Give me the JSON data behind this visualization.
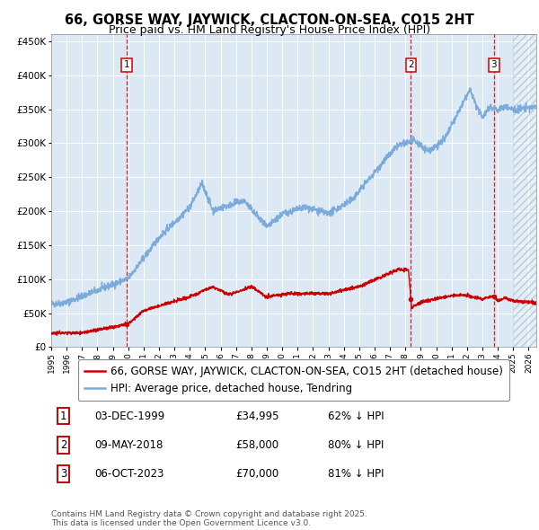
{
  "title": "66, GORSE WAY, JAYWICK, CLACTON-ON-SEA, CO15 2HT",
  "subtitle": "Price paid vs. HM Land Registry's House Price Index (HPI)",
  "hpi_label": "HPI: Average price, detached house, Tendring",
  "price_label": "66, GORSE WAY, JAYWICK, CLACTON-ON-SEA, CO15 2HT (detached house)",
  "ylabel_ticks": [
    "£0",
    "£50K",
    "£100K",
    "£150K",
    "£200K",
    "£250K",
    "£300K",
    "£350K",
    "£400K",
    "£450K"
  ],
  "ytick_vals": [
    0,
    50000,
    100000,
    150000,
    200000,
    250000,
    300000,
    350000,
    400000,
    450000
  ],
  "xlim_start": 1995.0,
  "xlim_end": 2026.5,
  "ylim": [
    0,
    460000
  ],
  "transactions": [
    {
      "num": 1,
      "date": "03-DEC-1999",
      "price": "34,995",
      "pct": "62%",
      "year": 1999.92
    },
    {
      "num": 2,
      "date": "09-MAY-2018",
      "price": "58,000",
      "pct": "80%",
      "year": 2018.36
    },
    {
      "num": 3,
      "date": "06-OCT-2023",
      "price": "70,000",
      "pct": "81%",
      "year": 2023.75
    }
  ],
  "hpi_color": "#7aabdb",
  "price_color": "#cc0000",
  "vline_color": "#cc0000",
  "bg_color": "#dce9f5",
  "grid_color": "#ffffff",
  "hatch_color": "#b0c8e0",
  "footer": "Contains HM Land Registry data © Crown copyright and database right 2025.\nThis data is licensed under the Open Government Licence v3.0.",
  "title_fontsize": 10.5,
  "subtitle_fontsize": 9,
  "tick_fontsize": 7.5,
  "legend_fontsize": 8.5,
  "table_fontsize": 8.5
}
